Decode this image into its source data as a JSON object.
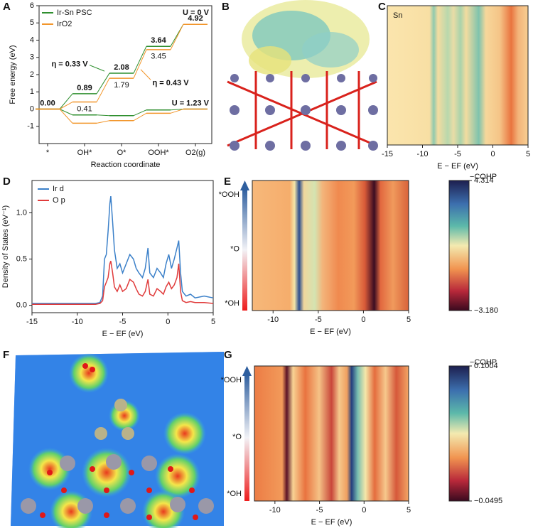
{
  "chart_data": [
    {
      "panel": "A",
      "type": "energy",
      "ylabel": "Free energy (eV)",
      "xlabel": "Reaction coordinate",
      "categories": [
        "*",
        "OH*",
        "O*",
        "OOH*",
        "O2(g)"
      ],
      "series": [
        {
          "name": "Ir-Sn PSC",
          "color": "#2f8f2f",
          "values": [
            0,
            0.89,
            2.08,
            3.64,
            4.92
          ],
          "value_labels": [
            "0.00",
            "0.89",
            "2.08",
            "3.64",
            "4.92"
          ],
          "shifted_values": [
            0,
            -0.34,
            -0.38,
            -0.05,
            0
          ]
        },
        {
          "name": "IrO2",
          "color": "#f2962b",
          "values": [
            0,
            0.41,
            1.79,
            3.45,
            4.92
          ],
          "value_labels": [
            null,
            "0.41",
            "1.79",
            "3.45",
            null
          ],
          "shifted_values": [
            0,
            -0.82,
            -0.67,
            -0.24,
            0
          ]
        }
      ],
      "ylim": [
        -2,
        6
      ],
      "yticks": [
        -1,
        0,
        1,
        2,
        3,
        4,
        5,
        6
      ],
      "annotations": {
        "u0": "U = 0 V",
        "u123": "U = 1.23 V",
        "eta_green": "η = 0.33 V",
        "eta_orange": "η = 0.43 V"
      }
    },
    {
      "panel": "B",
      "type": "image"
    },
    {
      "panel": "C",
      "type": "heatmap",
      "label": "Sn",
      "xlabel": "E − EF (eV)",
      "xlim": [
        -15,
        5
      ],
      "xticks": [
        -15,
        -10,
        -5,
        0,
        5
      ]
    },
    {
      "panel": "D",
      "type": "line",
      "xlabel": "E − EF (eV)",
      "ylabel": "Density of States (eV⁻¹)",
      "x": [
        -15,
        -8,
        -7.5,
        -7.2,
        -7,
        -6.8,
        -6.6,
        -6.4,
        -6.3,
        -6.1,
        -5.9,
        -5.6,
        -5.3,
        -5,
        -4.6,
        -4.2,
        -3.8,
        -3.5,
        -3.2,
        -2.8,
        -2.5,
        -2.2,
        -2,
        -1.6,
        -1.2,
        -0.8,
        -0.5,
        -0.2,
        0.1,
        0.4,
        0.7,
        1,
        1.2,
        1.4,
        1.6,
        2,
        2.5,
        3,
        4,
        5
      ],
      "series": [
        {
          "name": "Ir d",
          "color": "#3b80c9",
          "values": [
            0.02,
            0.02,
            0.03,
            0.1,
            0.5,
            0.55,
            0.8,
            1.1,
            1.18,
            0.9,
            0.6,
            0.4,
            0.45,
            0.35,
            0.45,
            0.55,
            0.5,
            0.4,
            0.35,
            0.3,
            0.4,
            0.62,
            0.35,
            0.3,
            0.4,
            0.35,
            0.3,
            0.45,
            0.55,
            0.4,
            0.5,
            0.62,
            0.7,
            0.35,
            0.15,
            0.1,
            0.12,
            0.08,
            0.1,
            0.08
          ]
        },
        {
          "name": "O p",
          "color": "#e03b3b",
          "values": [
            0.01,
            0.01,
            0.02,
            0.05,
            0.2,
            0.25,
            0.3,
            0.45,
            0.48,
            0.35,
            0.2,
            0.15,
            0.22,
            0.15,
            0.18,
            0.28,
            0.25,
            0.18,
            0.12,
            0.1,
            0.15,
            0.28,
            0.12,
            0.1,
            0.18,
            0.15,
            0.12,
            0.2,
            0.25,
            0.18,
            0.22,
            0.3,
            0.45,
            0.15,
            0.05,
            0.03,
            0.04,
            0.03,
            0.03,
            0.02
          ]
        }
      ],
      "xlim": [
        -15,
        5
      ],
      "xticks": [
        -15,
        -10,
        -5,
        0,
        5
      ],
      "ylim": [
        -0.08,
        1.35
      ],
      "yticks": [
        {
          "value": 0,
          "label": "0.0"
        },
        0.5,
        {
          "value": 1,
          "label": "1.0"
        }
      ]
    },
    {
      "panel": "E",
      "type": "heatmap",
      "xlabel": "E − EF (eV)",
      "xlim": [
        -12.3,
        5
      ],
      "xticks": [
        -10,
        -5,
        0,
        5
      ],
      "ycategories": [
        "*OH",
        "*O",
        "*OOH"
      ],
      "colorbar_title": "−COHP",
      "clim": [
        -3.18,
        4.314
      ],
      "cticks": [
        4.314,
        {
          "value": -3.18,
          "label": "−3.180"
        }
      ]
    },
    {
      "panel": "F",
      "type": "image"
    },
    {
      "panel": "G",
      "type": "heatmap",
      "xlabel": "E − EF (eV)",
      "xlim": [
        -12.3,
        5
      ],
      "xticks": [
        -10,
        -5,
        0,
        5
      ],
      "ycategories": [
        "*OH",
        "*O",
        "*OOH"
      ],
      "colorbar_title": "−COHP",
      "clim": [
        -0.0495,
        0.1004
      ],
      "cticks": [
        0.1004,
        {
          "value": -0.0495,
          "label": "−0.0495"
        }
      ]
    }
  ]
}
